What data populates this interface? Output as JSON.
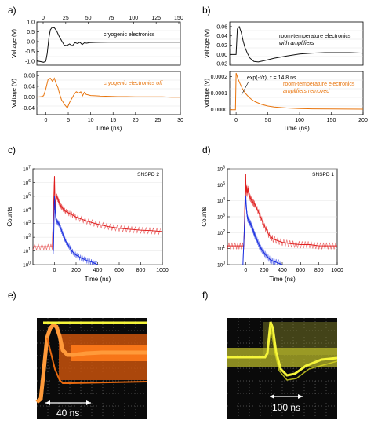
{
  "panel_labels": [
    "a)",
    "b)",
    "c)",
    "d)",
    "e)",
    "f)"
  ],
  "colors": {
    "black": "#111111",
    "orange": "#e8740c",
    "red": "#e02020",
    "blue": "#1a2ee0",
    "scope_bg": "#0a0a0a",
    "scope_yellow": "#f5f53a",
    "scope_orange": "#ff7a1a",
    "scope_grid": "#8a8a8a"
  },
  "chart_data": [
    {
      "id": "a-top",
      "type": "line",
      "annotation": "cryogenic electronics",
      "xlabel": "",
      "ylabel": "Voltage (V)",
      "xlim": [
        -2,
        30
      ],
      "ylim": [
        -1.2,
        1.0
      ],
      "x_top_ticks": [
        "0",
        "25",
        "50",
        "75",
        "100",
        "125",
        "150"
      ],
      "yticks": [
        "1.0",
        "0.5",
        "0.0",
        "-0.5",
        "-1.0"
      ],
      "series": [
        {
          "color": "orange_none",
          "x": [
            -2,
            -0.5,
            0,
            0.3,
            0.7,
            1.0,
            1.4,
            1.9,
            2.4,
            2.9,
            3.5,
            4.1,
            4.7,
            5.3,
            5.9,
            6.5,
            7.1,
            7.6,
            8.1,
            8.6,
            9.1,
            9.8,
            11,
            14,
            18,
            22,
            26,
            30
          ],
          "y": [
            -0.98,
            -1.05,
            -1.0,
            -0.6,
            0.2,
            0.6,
            0.72,
            0.7,
            0.55,
            0.3,
            0.05,
            -0.18,
            -0.2,
            -0.12,
            -0.22,
            -0.05,
            -0.1,
            -0.03,
            -0.15,
            -0.06,
            -0.08,
            -0.05,
            -0.04,
            -0.03,
            -0.03,
            -0.03,
            -0.03,
            -0.03
          ]
        }
      ]
    },
    {
      "id": "a-bottom",
      "type": "line",
      "annotation": "cryogenic electronics off",
      "xlabel": "Time (ns)",
      "ylabel": "Voltage (V)",
      "xlim": [
        -2,
        30
      ],
      "ylim": [
        -0.065,
        0.095
      ],
      "xticks": [
        "0",
        "5",
        "10",
        "15",
        "20",
        "25",
        "30"
      ],
      "yticks": [
        "0.08",
        "0.04",
        "0.00",
        "-0.04"
      ],
      "series": [
        {
          "x": [
            -2,
            -1,
            -0.5,
            0,
            0.5,
            1.0,
            1.5,
            1.9,
            2.3,
            2.7,
            3.1,
            3.5,
            3.9,
            4.3,
            4.8,
            5.3,
            5.8,
            6.3,
            6.8,
            7.3,
            7.8,
            8.2,
            8.6,
            9.0,
            9.5,
            10,
            11,
            12,
            14,
            16,
            18,
            20,
            22,
            24,
            26,
            28,
            30
          ],
          "y": [
            0.0,
            0.002,
            0.005,
            0.03,
            0.065,
            0.07,
            0.058,
            0.07,
            0.05,
            0.035,
            0.01,
            -0.01,
            -0.02,
            -0.03,
            -0.04,
            -0.02,
            -0.005,
            0.01,
            0.02,
            0.015,
            0.02,
            0.005,
            0.018,
            0.01,
            0.008,
            0.006,
            0.005,
            0.004,
            0.003,
            0.002,
            0.002,
            0.001,
            0.001,
            0.001,
            0.001,
            0.0,
            0.0
          ]
        }
      ]
    },
    {
      "id": "b-top",
      "type": "line",
      "annotation": [
        "room-temperature electronics",
        "with amplifiers"
      ],
      "xlabel": "",
      "ylabel": "Voltage (V)",
      "xlim": [
        -10,
        200
      ],
      "ylim": [
        -0.023,
        0.07
      ],
      "yticks": [
        "0.06",
        "0.04",
        "0.02",
        "0.00",
        "-0.02"
      ],
      "series": [
        {
          "x": [
            -10,
            -2,
            0,
            2,
            5,
            8,
            11,
            14,
            18,
            22,
            28,
            35,
            45,
            60,
            80,
            100,
            120,
            140,
            160,
            180,
            200
          ],
          "y": [
            0.0,
            0.0,
            0.0,
            0.055,
            0.06,
            0.048,
            0.03,
            0.015,
            0.002,
            -0.008,
            -0.015,
            -0.016,
            -0.013,
            -0.008,
            -0.003,
            0.001,
            0.003,
            0.004,
            0.004,
            0.004,
            0.003
          ]
        }
      ]
    },
    {
      "id": "b-bottom",
      "type": "line",
      "annotation": [
        "room-temperature electronics",
        "amplifiers removed"
      ],
      "fit_label": "exp(-t/τ), τ = 14.8 ns",
      "xlabel": "Time (ns)",
      "ylabel": "Voltage (V)",
      "xlim": [
        -10,
        200
      ],
      "ylim": [
        -3e-05,
        0.00023
      ],
      "xticks": [
        "0",
        "50",
        "100",
        "150",
        "200"
      ],
      "yticks": [
        "0.0002",
        "0.0001",
        "0.0000"
      ],
      "series": [
        {
          "x": [
            -10,
            -1,
            0,
            1,
            3,
            6,
            10,
            15,
            20,
            25,
            30,
            40,
            50,
            60,
            80,
            100,
            120,
            150,
            200
          ],
          "y": [
            0.0,
            0.0,
            0.00022,
            0.00021,
            0.000186,
            0.000158,
            0.000126,
            9.7e-05,
            7.6e-05,
            6e-05,
            4.8e-05,
            3.2e-05,
            2.2e-05,
            1.6e-05,
            1e-05,
            7e-06,
            5e-06,
            4e-06,
            3e-06
          ]
        }
      ]
    },
    {
      "id": "c",
      "type": "line",
      "annotation": "SNSPD 2",
      "xlabel": "Time (ns)",
      "ylabel": "Counts",
      "yscale": "log",
      "xlim": [
        -200,
        1000
      ],
      "ylim": [
        1,
        10000000
      ],
      "xticks": [
        "0",
        "200",
        "400",
        "600",
        "800",
        "1000"
      ],
      "yticks": [
        "10^7",
        "10^6",
        "10^5",
        "10^4",
        "10^3",
        "10^2",
        "10^1",
        "10^0"
      ],
      "series": [
        {
          "color": "red",
          "x": [
            -200,
            -100,
            -20,
            0,
            5,
            10,
            20,
            35,
            50,
            70,
            100,
            150,
            200,
            300,
            400,
            500,
            600,
            700,
            800,
            900,
            1000
          ],
          "y": [
            20,
            20,
            20,
            3000000,
            10000,
            40000,
            110000,
            50000,
            25000,
            15000,
            8000,
            5000,
            3000,
            1500,
            900,
            600,
            450,
            380,
            330,
            300,
            260
          ]
        },
        {
          "color": "blue",
          "x": [
            -10,
            0,
            10,
            20,
            40,
            60,
            80,
            100,
            130,
            160,
            200,
            250,
            300,
            350,
            400
          ],
          "y": [
            10,
            100000,
            3000,
            1500,
            1000,
            400,
            150,
            60,
            25,
            10,
            5,
            3,
            2,
            1.5,
            1
          ]
        }
      ]
    },
    {
      "id": "d",
      "type": "line",
      "annotation": "SNSPD 1",
      "xlabel": "Time (ns)",
      "ylabel": "Counts",
      "yscale": "log",
      "xlim": [
        -200,
        1000
      ],
      "ylim": [
        1,
        1000000
      ],
      "xticks": [
        "0",
        "200",
        "400",
        "600",
        "800",
        "1000"
      ],
      "yticks": [
        "10^6",
        "10^5",
        "10^4",
        "10^3",
        "10^2",
        "10^1",
        "10^0"
      ],
      "series": [
        {
          "color": "red",
          "x": [
            -200,
            -100,
            -20,
            0,
            5,
            12,
            20,
            30,
            40,
            60,
            80,
            100,
            150,
            200,
            250,
            300,
            400,
            500,
            600,
            700,
            800,
            900,
            1000
          ],
          "y": [
            15,
            15,
            15,
            500000,
            20000,
            80000,
            30000,
            60000,
            20000,
            12000,
            8000,
            6000,
            1500,
            300,
            80,
            40,
            25,
            20,
            18,
            18,
            15,
            15,
            15
          ]
        },
        {
          "color": "blue",
          "x": [
            -30,
            0,
            10,
            20,
            40,
            60,
            80,
            100,
            120,
            150,
            180,
            220,
            270,
            320,
            400
          ],
          "y": [
            1,
            20000,
            2500,
            800,
            500,
            300,
            150,
            70,
            40,
            15,
            8,
            4,
            2,
            1.5,
            1
          ]
        }
      ]
    }
  ],
  "oscilloscopes": [
    {
      "id": "e",
      "scale_label": "40 ns"
    },
    {
      "id": "f",
      "scale_label": "100 ns"
    }
  ]
}
